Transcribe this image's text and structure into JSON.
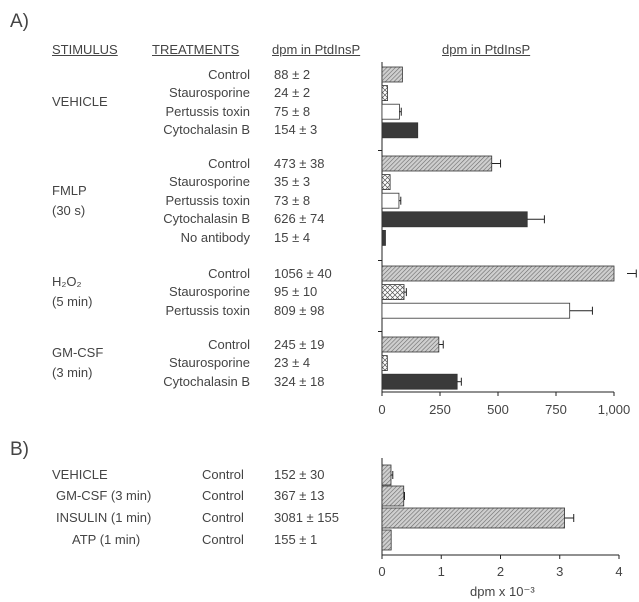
{
  "chart_data": [
    {
      "type": "bar",
      "panel": "A)",
      "headers": {
        "stimulus": "STIMULUS",
        "treatments": "TREATMENTS",
        "values": "dpm in PtdInsP",
        "plot": "dpm in PtdInsP"
      },
      "xlim": [
        0,
        1000
      ],
      "xticks": [
        "0",
        "250",
        "500",
        "750",
        "1,000"
      ],
      "xtick_values": [
        0,
        250,
        500,
        750,
        1000
      ],
      "groups": [
        {
          "stimulus": "VEHICLE",
          "stimulus_sub": "",
          "rows": [
            {
              "treatment": "Control",
              "label": "88 ± 2",
              "value": 88,
              "error": 2,
              "fill": "hatch"
            },
            {
              "treatment": "Staurosporine",
              "label": "24 ± 2",
              "value": 24,
              "error": 2,
              "fill": "cross"
            },
            {
              "treatment": "Pertussis toxin",
              "label": "75 ± 8",
              "value": 75,
              "error": 8,
              "fill": "white"
            },
            {
              "treatment": "Cytochalasin B",
              "label": "154 ± 3",
              "value": 154,
              "error": 3,
              "fill": "dark"
            }
          ]
        },
        {
          "stimulus": "FMLP",
          "stimulus_sub": "(30 s)",
          "rows": [
            {
              "treatment": "Control",
              "label": "473  ± 38",
              "value": 473,
              "error": 38,
              "fill": "hatch"
            },
            {
              "treatment": "Staurosporine",
              "label": "35 ± 3",
              "value": 35,
              "error": 3,
              "fill": "cross"
            },
            {
              "treatment": "Pertussis toxin",
              "label": "73 ± 8",
              "value": 73,
              "error": 8,
              "fill": "white"
            },
            {
              "treatment": "Cytochalasin B",
              "label": "626 ± 74",
              "value": 626,
              "error": 74,
              "fill": "dark"
            },
            {
              "treatment": "No antibody",
              "label": "15 ± 4",
              "value": 15,
              "error": 4,
              "fill": "dark"
            }
          ]
        },
        {
          "stimulus": "H₂O₂",
          "stimulus_sub": "(5 min)",
          "rows": [
            {
              "treatment": "Control",
              "label": "1056 ± 40",
              "value": 1056,
              "error": 40,
              "fill": "hatch"
            },
            {
              "treatment": "Staurosporine",
              "label": "95  ± 10",
              "value": 95,
              "error": 10,
              "fill": "cross"
            },
            {
              "treatment": "Pertussis toxin",
              "label": "809 ± 98",
              "value": 809,
              "error": 98,
              "fill": "white"
            }
          ]
        },
        {
          "stimulus": "GM-CSF",
          "stimulus_sub": "(3 min)",
          "rows": [
            {
              "treatment": "Control",
              "label": "245  ± 19",
              "value": 245,
              "error": 19,
              "fill": "hatch"
            },
            {
              "treatment": "Staurosporine",
              "label": "23 ± 4",
              "value": 23,
              "error": 4,
              "fill": "cross"
            },
            {
              "treatment": "Cytochalasin B",
              "label": "324 ± 18",
              "value": 324,
              "error": 18,
              "fill": "dark"
            }
          ]
        }
      ]
    },
    {
      "type": "bar",
      "panel": "B)",
      "xlabel": "dpm x 10⁻³",
      "xlim": [
        0,
        4
      ],
      "xticks": [
        "0",
        "1",
        "2",
        "3",
        "4"
      ],
      "xtick_values": [
        0,
        1,
        2,
        3,
        4
      ],
      "rows": [
        {
          "stimulus": "VEHICLE",
          "treatment": "Control",
          "label": "152  ± 30",
          "value": 0.152,
          "error": 0.03,
          "fill": "hatch"
        },
        {
          "stimulus": "GM-CSF (3 min)",
          "treatment": "Control",
          "label": "367  ± 13",
          "value": 0.367,
          "error": 0.013,
          "fill": "hatch"
        },
        {
          "stimulus": "INSULIN (1 min)",
          "treatment": "Control",
          "label": "3081 ± 155",
          "value": 3.081,
          "error": 0.155,
          "fill": "hatch"
        },
        {
          "stimulus": "ATP (1 min)",
          "treatment": "Control",
          "label": "155 ± 1",
          "value": 0.155,
          "error": 0.001,
          "fill": "hatch"
        }
      ]
    }
  ]
}
